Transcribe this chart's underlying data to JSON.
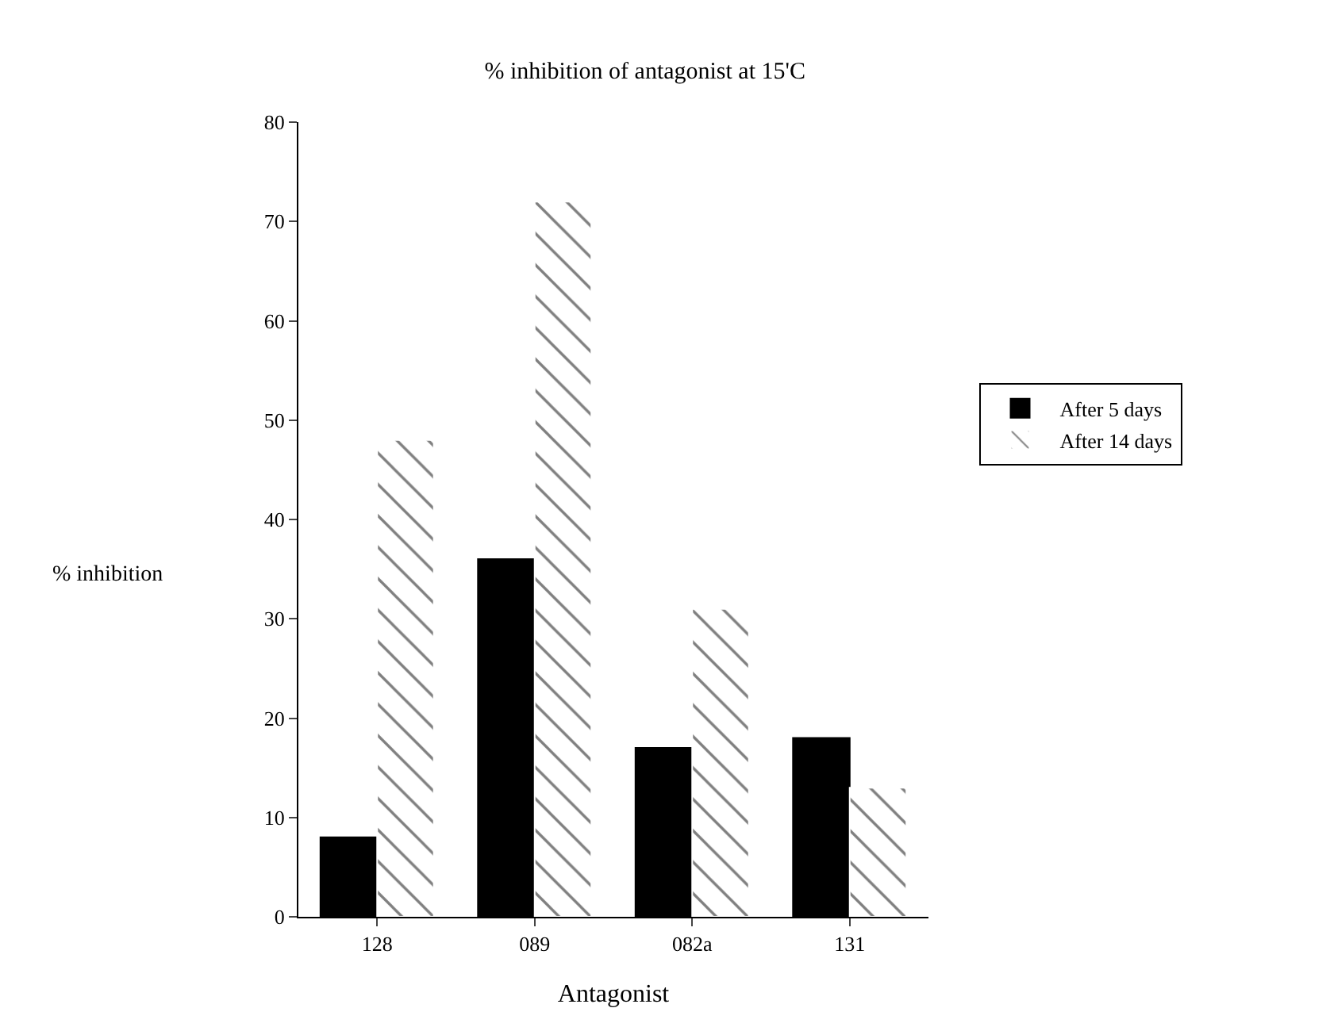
{
  "chart_data": {
    "type": "bar",
    "title": "% inhibition of antagonist at 15'C",
    "xlabel": "Antagonist",
    "ylabel": "% inhibition",
    "categories": [
      "128",
      "089",
      "082a",
      "131"
    ],
    "series": [
      {
        "name": "After 5 days",
        "color": "#000000",
        "values": [
          8,
          36,
          17,
          18
        ]
      },
      {
        "name": "After 14 days",
        "color": "#ffffff",
        "values": [
          48,
          72,
          31,
          13
        ]
      }
    ],
    "ylim": [
      0,
      80
    ],
    "yticks": [
      0,
      10,
      20,
      30,
      40,
      50,
      60,
      70,
      80
    ],
    "grid": false,
    "legend": "right"
  }
}
